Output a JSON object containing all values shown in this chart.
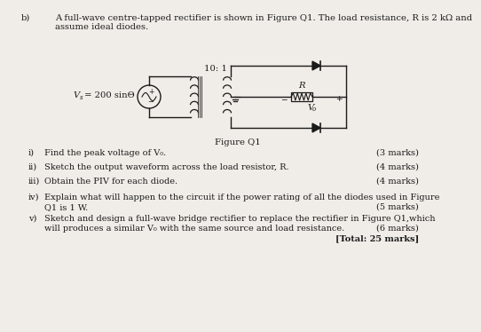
{
  "bg_color": "#f0ede8",
  "text_color": "#1a1a1a",
  "title_label": "b)",
  "intro_line1": "A full-wave centre-tapped rectifier is shown in Figure Q1. The load resistance, R is 2 kΩ and",
  "intro_line2": "assume ideal diodes.",
  "figure_label": "Figure Q1",
  "transformer_ratio": "10: 1",
  "source_label_vs": "V",
  "source_label_s": "s",
  "source_label_rest": " = 200 sinΘ",
  "resistor_label": "R",
  "output_label": "V",
  "output_sub": "o",
  "questions": [
    {
      "roman": "i)",
      "text": "Find the peak voltage of V",
      "text_sub": "o",
      "text_end": ".",
      "marks": "(3 marks)"
    },
    {
      "roman": "ii)",
      "text": "Sketch the output waveform across the load resistor, R.",
      "text_sub": "",
      "text_end": "",
      "marks": "(4 marks)"
    },
    {
      "roman": "iii)",
      "text": "Obtain the PIV for each diode.",
      "text_sub": "",
      "text_end": "",
      "marks": "(4 marks)"
    },
    {
      "roman": "iv)",
      "text": "Explain what will happen to the circuit if the power rating of all the diodes used in Figure",
      "text2": "Q1 is 1 W.",
      "text_sub": "",
      "text_end": "",
      "marks": "(5 marks)"
    },
    {
      "roman": "v)",
      "text": "Sketch and design a full-wave bridge rectifier to replace the rectifier in Figure Q1,which",
      "text2": "will produces a similar V",
      "text2_sub": "o",
      "text2_end": " with the same source and load resistance.",
      "text_sub": "",
      "text_end": "",
      "marks": "(6 marks)"
    }
  ],
  "total": "[Total: 25 marks]"
}
